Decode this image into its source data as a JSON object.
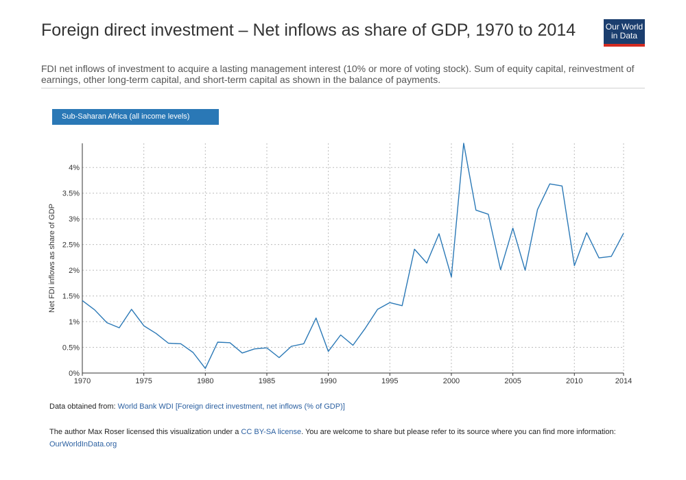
{
  "header": {
    "title": "Foreign direct investment – Net inflows as share of GDP, 1970 to 2014",
    "subtitle": "FDI net inflows of investment to acquire a lasting management interest (10% or more of voting stock). Sum of equity capital, reinvestment of earnings, other long-term capital, and short-term capital as shown in the balance of payments.",
    "logo_line1": "Our World",
    "logo_line2": "in Data"
  },
  "legend": {
    "label": "Sub-Saharan Africa (all income levels)"
  },
  "colors": {
    "series": "#2a78b6",
    "logo_bg": "#1b3e6e",
    "logo_bar": "#d42b21",
    "grid": "#bbbbbb"
  },
  "chart_data": {
    "type": "line",
    "title": "Foreign direct investment – Net inflows as share of GDP, 1970 to 2014",
    "xlabel": "",
    "ylabel": "Net FDI inflows as share of GDP",
    "xlim": [
      1970,
      2014
    ],
    "ylim": [
      0,
      4.47
    ],
    "grid": true,
    "legend_position": "top-left",
    "x_ticks": [
      1970,
      1975,
      1980,
      1985,
      1990,
      1995,
      2000,
      2005,
      2010,
      2014
    ],
    "y_ticks": [
      0,
      0.5,
      1,
      1.5,
      2,
      2.5,
      3,
      3.5,
      4
    ],
    "y_tick_labels": [
      "0%",
      "0.5%",
      "1%",
      "1.5%",
      "2%",
      "2.5%",
      "3%",
      "3.5%",
      "4%"
    ],
    "series": [
      {
        "name": "Sub-Saharan Africa (all income levels)",
        "x": [
          1970,
          1971,
          1972,
          1973,
          1974,
          1975,
          1976,
          1977,
          1978,
          1979,
          1980,
          1981,
          1982,
          1983,
          1984,
          1985,
          1986,
          1987,
          1988,
          1989,
          1990,
          1991,
          1992,
          1993,
          1994,
          1995,
          1996,
          1997,
          1998,
          1999,
          2000,
          2001,
          2002,
          2003,
          2004,
          2005,
          2006,
          2007,
          2008,
          2009,
          2010,
          2011,
          2012,
          2013,
          2014
        ],
        "values": [
          1.41,
          1.23,
          0.98,
          0.88,
          1.24,
          0.92,
          0.77,
          0.58,
          0.57,
          0.4,
          0.09,
          0.6,
          0.59,
          0.39,
          0.47,
          0.49,
          0.3,
          0.52,
          0.57,
          1.07,
          0.42,
          0.74,
          0.54,
          0.87,
          1.24,
          1.37,
          1.31,
          2.41,
          2.14,
          2.71,
          1.87,
          4.47,
          3.17,
          3.09,
          2.01,
          2.82,
          2.0,
          3.18,
          3.68,
          3.64,
          2.09,
          2.73,
          2.24,
          2.27,
          2.72
        ]
      }
    ]
  },
  "footer": {
    "source_prefix": "Data obtained from: ",
    "source_link": "World Bank WDI [Foreign direct investment, net inflows (% of GDP)]",
    "license_prefix": "The author Max Roser licensed this visualization under a ",
    "license_link": "CC BY-SA license",
    "license_middle": ". You are welcome to share but please refer to its source where you can find more information: ",
    "site_link": "OurWorldInData.org"
  }
}
